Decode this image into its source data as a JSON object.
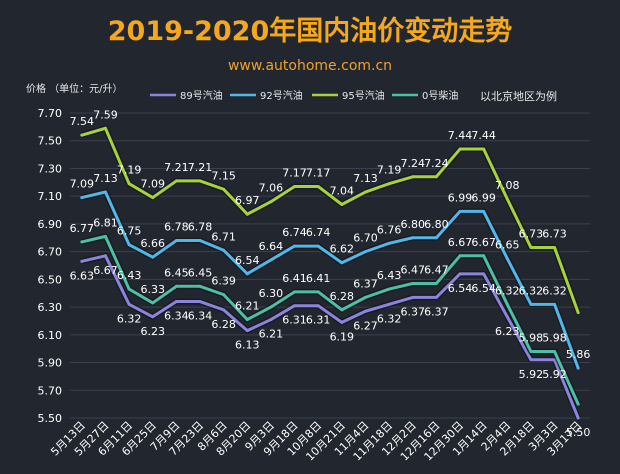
{
  "chart_data": {
    "type": "line",
    "title": "2019-2020年国内油价变动走势",
    "subtitle": "www.autohome.com.cn",
    "ylabel": "价格 （单位：元/升）",
    "xlabel": "",
    "note": "以北京地区为例",
    "ylim": [
      5.5,
      7.7
    ],
    "yticks": [
      "5.50",
      "5.70",
      "5.90",
      "6.10",
      "6.30",
      "6.50",
      "6.70",
      "6.90",
      "7.10",
      "7.30",
      "7.50",
      "7.70"
    ],
    "categories": [
      "5月13日",
      "5月27日",
      "6月11日",
      "6月25日",
      "7月9日",
      "7月23日",
      "8月6日",
      "8月20日",
      "9月3日",
      "9月18日",
      "10月8日",
      "10月21日",
      "11月4日",
      "11月18日",
      "12月2日",
      "12月16日",
      "12月30日",
      "1月14日",
      "2月4日",
      "2月18日",
      "3月3日",
      "3月17日"
    ],
    "series": [
      {
        "name": "89号汽油",
        "color": "#8a84dc",
        "values": [
          6.63,
          6.67,
          6.32,
          6.23,
          6.34,
          6.34,
          6.28,
          6.13,
          6.21,
          6.31,
          6.31,
          6.19,
          6.27,
          6.32,
          6.37,
          6.37,
          6.54,
          6.54,
          6.23,
          5.92,
          5.92,
          5.5
        ]
      },
      {
        "name": "92号汽油",
        "color": "#52b6e8",
        "values": [
          7.09,
          7.13,
          6.75,
          6.66,
          6.78,
          6.78,
          6.71,
          6.54,
          6.64,
          6.74,
          6.74,
          6.62,
          6.7,
          6.76,
          6.8,
          6.8,
          6.99,
          6.99,
          6.65,
          6.32,
          6.32,
          5.86
        ]
      },
      {
        "name": "95号汽油",
        "color": "#a6d23c",
        "values": [
          7.54,
          7.59,
          7.19,
          7.09,
          7.21,
          7.21,
          7.15,
          6.97,
          7.06,
          7.17,
          7.17,
          7.04,
          7.13,
          7.19,
          7.24,
          7.24,
          7.44,
          7.44,
          7.08,
          6.73,
          6.73,
          6.26
        ]
      },
      {
        "name": "0号柴油",
        "color": "#4dbfa4",
        "values": [
          6.77,
          6.81,
          6.43,
          6.33,
          6.45,
          6.45,
          6.39,
          6.21,
          6.3,
          6.41,
          6.41,
          6.28,
          6.37,
          6.43,
          6.47,
          6.47,
          6.67,
          6.67,
          6.32,
          5.98,
          5.98,
          5.6
        ]
      }
    ],
    "data_labels": [
      {
        "series": 2,
        "values": [
          "7.54",
          "7.59",
          "7.19",
          "7.09",
          "7.21",
          "7.21",
          "7.15",
          "6.97",
          "7.06",
          "7.17",
          "7.17",
          "7.04",
          "7.13",
          "7.19",
          "7.24",
          "7.24",
          "7.44",
          "7.44",
          "7.08",
          "6.73",
          "6.73",
          ""
        ]
      },
      {
        "series": 1,
        "values": [
          "7.09",
          "7.13",
          "6.75",
          "6.66",
          "6.78",
          "6.78",
          "6.71",
          "6.54",
          "6.64",
          "6.74",
          "6.74",
          "6.62",
          "6.70",
          "6.76",
          "6.80",
          "6.80",
          "6.99",
          "6.99",
          "6.65",
          "6.32",
          "6.32",
          "5.86"
        ]
      },
      {
        "series": 3,
        "values": [
          "6.77",
          "6.81",
          "6.43",
          "6.33",
          "6.45",
          "6.45",
          "6.39",
          "6.21",
          "6.30",
          "6.41",
          "6.41",
          "6.28",
          "6.37",
          "6.43",
          "6.47",
          "6.47",
          "6.67",
          "6.67",
          "6.32",
          "5.98",
          "5.98",
          ""
        ]
      },
      {
        "series": 0,
        "values": [
          "6.63",
          "6.67",
          "6.32",
          "6.23",
          "6.34",
          "6.34",
          "6.28",
          "6.13",
          "6.21",
          "6.31",
          "6.31",
          "6.19",
          "6.27",
          "6.32",
          "6.37",
          "6.37",
          "6.54",
          "6.54",
          "6.23",
          "5.92",
          "5.92",
          "5.50"
        ]
      }
    ],
    "grid": true,
    "legend": "top"
  }
}
